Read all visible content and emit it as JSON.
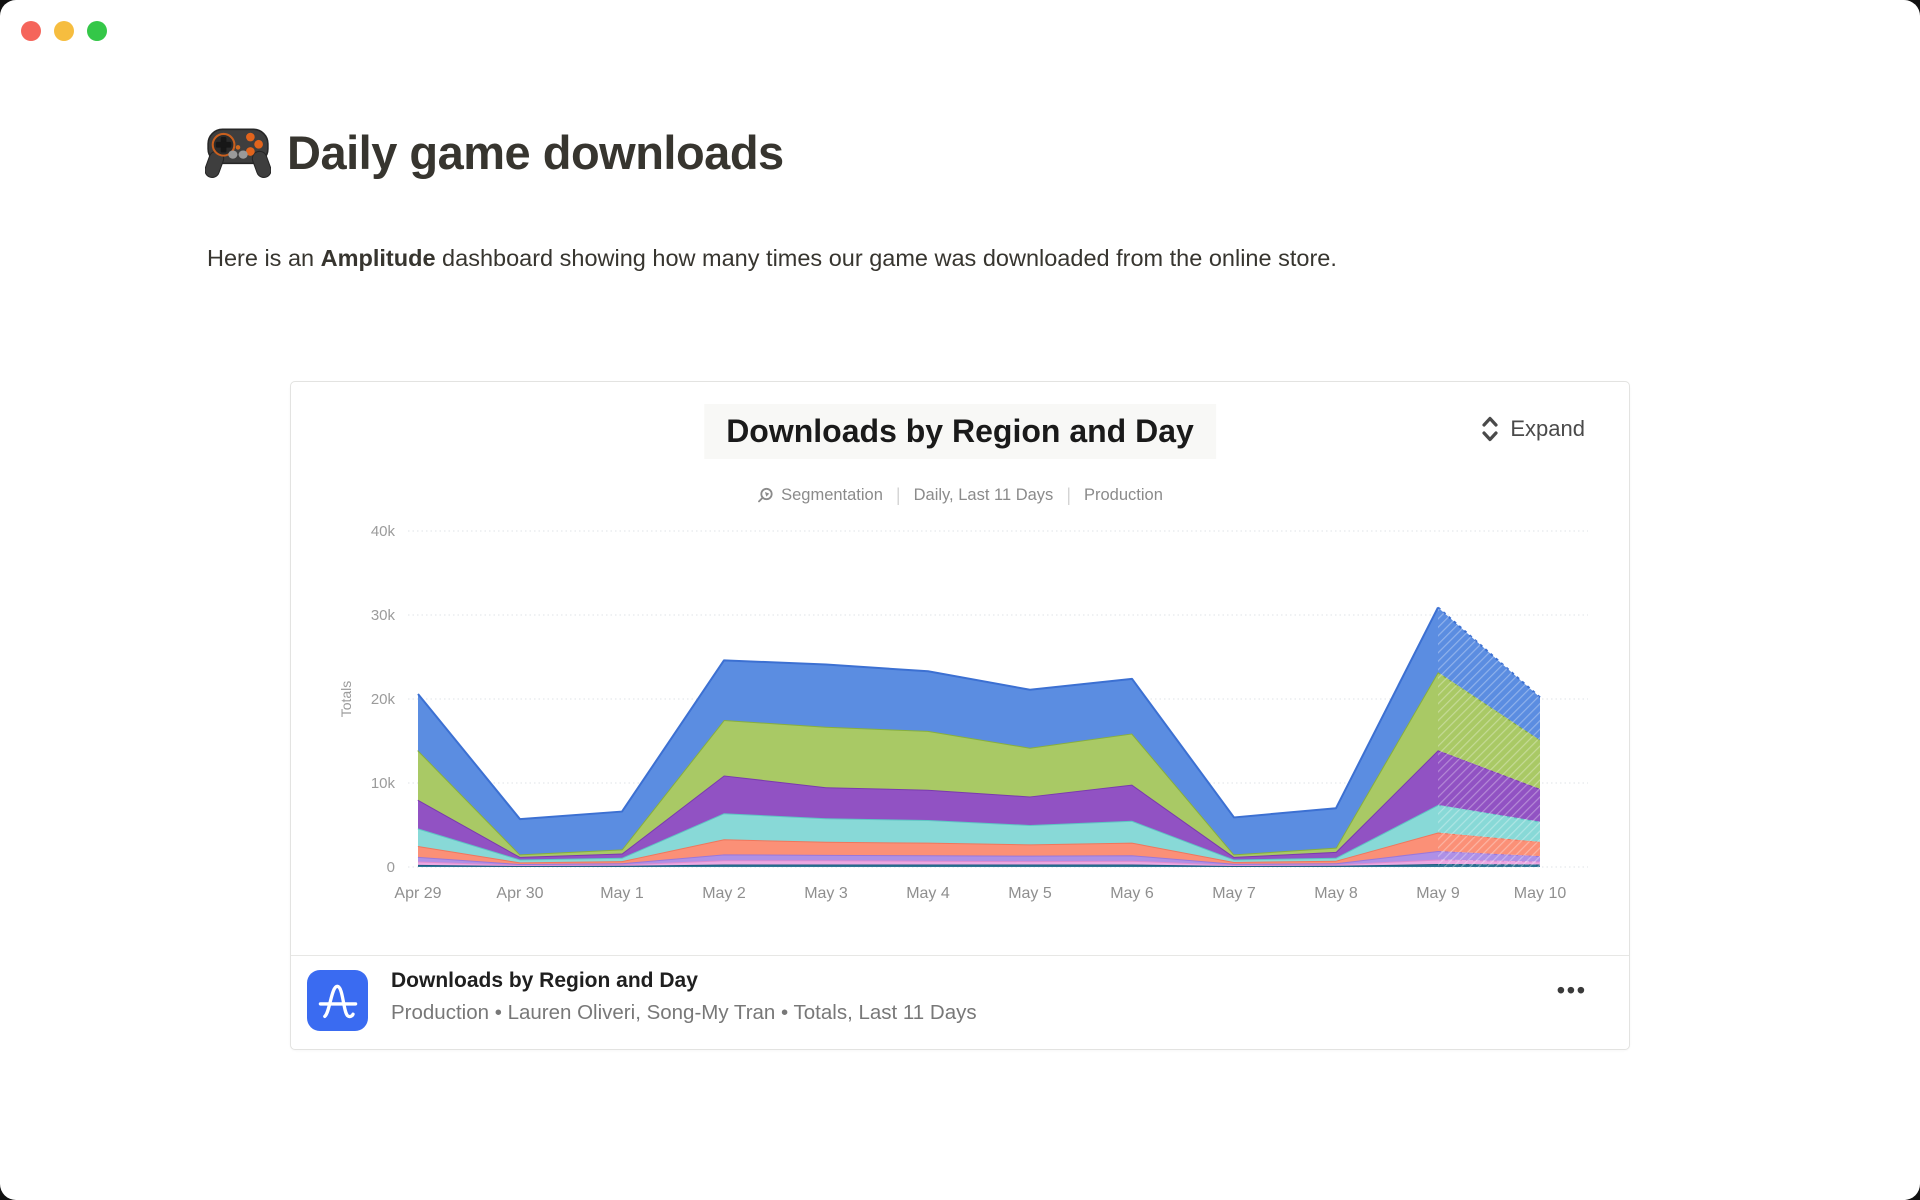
{
  "window": {
    "controls": [
      "close",
      "minimize",
      "zoom"
    ]
  },
  "page": {
    "title": "Daily game downloads",
    "title_icon": "gamepad-emoji",
    "intro": {
      "pre": "Here is an ",
      "bold": "Amplitude",
      "post": " dashboard showing how many times our game was downloaded from the online store."
    }
  },
  "card": {
    "header": {
      "title": "Downloads by Region and Day",
      "expand_label": "Expand",
      "meta": {
        "segmentation": "Segmentation",
        "range": "Daily, Last 11 Days",
        "env": "Production",
        "separator": "|"
      }
    },
    "footer": {
      "title": "Downloads by Region and Day",
      "subtitle": "Production • Lauren Oliveri, Song-My Tran • Totals, Last 11 Days",
      "menu": "•••",
      "logo": "amplitude-logo",
      "logo_color": "#3A6BF1"
    }
  },
  "chart_data": {
    "type": "area",
    "stacked": true,
    "title": "Downloads by Region and Day",
    "xlabel": "",
    "grid": "dotted-horizontal",
    "legend": "none",
    "last_segment_style": "dashed (partial final day, May 9 to May 10)",
    "y_axis": {
      "label": "Totals",
      "unit": "downloads",
      "ylim_k": [
        0,
        40
      ],
      "ticks": [
        {
          "v": 0,
          "label": "0"
        },
        {
          "v": 10,
          "label": "10k"
        },
        {
          "v": 20,
          "label": "20k"
        },
        {
          "v": 30,
          "label": "30k"
        },
        {
          "v": 40,
          "label": "40k"
        }
      ]
    },
    "categories": [
      "Apr 29",
      "Apr 30",
      "May 1",
      "May 2",
      "May 3",
      "May 4",
      "May 5",
      "May 6",
      "May 7",
      "May 8",
      "May 9",
      "May 10"
    ],
    "totals_k": [
      20.6,
      5.7,
      6.6,
      24.6,
      24.1,
      23.3,
      21.1,
      22.4,
      5.9,
      7.0,
      30.9,
      20.2
    ],
    "series": [
      {
        "name": "dark-teal",
        "color": "#2E7596",
        "stroke": "#1D5E80",
        "values_k": [
          0.25,
          0.12,
          0.15,
          0.3,
          0.3,
          0.3,
          0.3,
          0.3,
          0.12,
          0.15,
          0.35,
          0.3
        ]
      },
      {
        "name": "pink",
        "color": "#ECA8E2",
        "stroke": "#DD8CD1",
        "values_k": [
          0.4,
          0.13,
          0.15,
          0.5,
          0.5,
          0.45,
          0.4,
          0.45,
          0.13,
          0.15,
          0.55,
          0.35
        ]
      },
      {
        "name": "lavender",
        "color": "#AE90E6",
        "stroke": "#9A77DA",
        "values_k": [
          0.55,
          0.1,
          0.15,
          0.7,
          0.65,
          0.65,
          0.65,
          0.65,
          0.13,
          0.15,
          1.0,
          0.65
        ]
      },
      {
        "name": "salmon",
        "color": "#FB9077",
        "stroke": "#F0765C",
        "values_k": [
          1.3,
          0.2,
          0.25,
          1.8,
          1.55,
          1.5,
          1.35,
          1.5,
          0.22,
          0.3,
          2.2,
          1.7
        ]
      },
      {
        "name": "teal",
        "color": "#88D9D7",
        "stroke": "#5EC6C4",
        "values_k": [
          2.1,
          0.35,
          0.4,
          3.1,
          2.8,
          2.7,
          2.3,
          2.6,
          0.3,
          0.35,
          3.3,
          2.4
        ]
      },
      {
        "name": "purple",
        "color": "#9152C3",
        "stroke": "#7A3AAE",
        "values_k": [
          3.4,
          0.3,
          0.5,
          4.5,
          3.7,
          3.6,
          3.4,
          4.3,
          0.3,
          0.7,
          6.5,
          3.9
        ]
      },
      {
        "name": "green",
        "color": "#A9C965",
        "stroke": "#87AF3D",
        "values_k": [
          5.9,
          0.3,
          0.5,
          6.6,
          7.2,
          7.0,
          5.8,
          6.1,
          0.3,
          0.5,
          9.3,
          5.8
        ]
      },
      {
        "name": "blue",
        "color": "#5B8DE1",
        "stroke": "#3C70D2",
        "values_k": [
          6.7,
          4.2,
          4.5,
          7.1,
          7.4,
          7.1,
          6.9,
          6.5,
          4.4,
          4.7,
          7.7,
          5.1
        ]
      }
    ]
  }
}
